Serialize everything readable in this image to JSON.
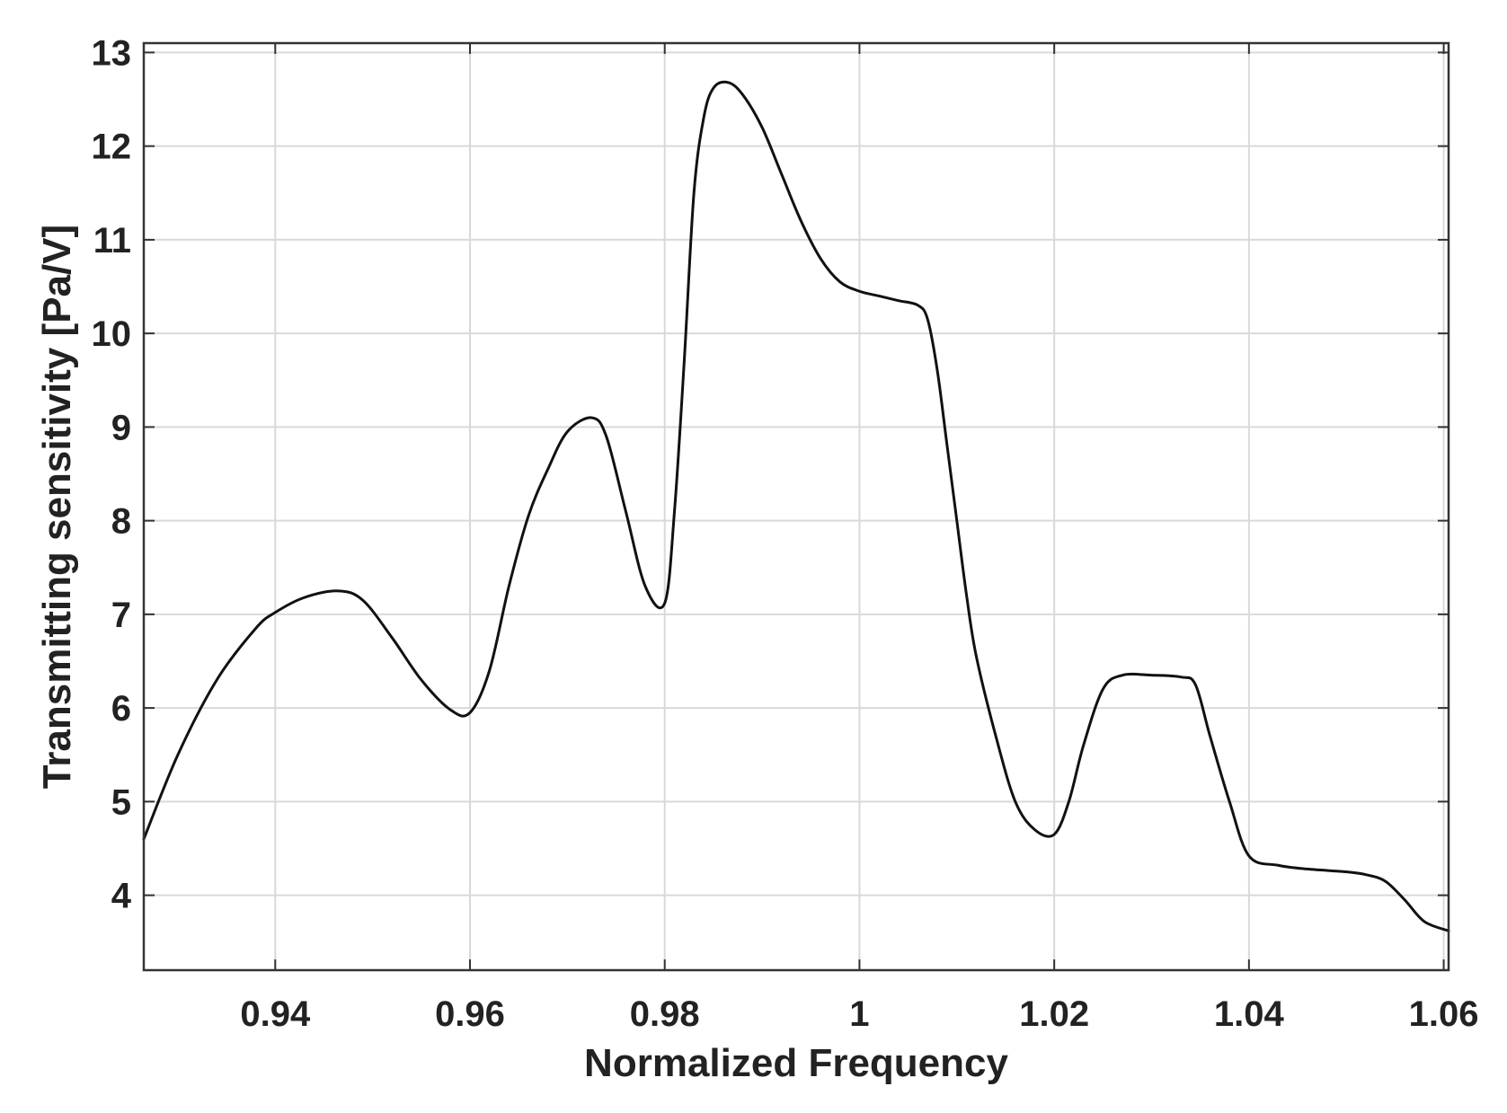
{
  "chart_data": {
    "type": "line",
    "title": "",
    "xlabel": "Normalized Frequency",
    "ylabel": "Transmitting sensitivity [Pa/V]",
    "xlim": [
      0.9265,
      1.0605
    ],
    "ylim": [
      3.2,
      13.1
    ],
    "xticks": [
      0.94,
      0.96,
      0.98,
      1.0,
      1.02,
      1.04,
      1.06
    ],
    "xtick_labels": [
      "0.94",
      "0.96",
      "0.98",
      "1",
      "1.02",
      "1.04",
      "1.06"
    ],
    "yticks": [
      4,
      5,
      6,
      7,
      8,
      9,
      10,
      11,
      12,
      13
    ],
    "ytick_labels": [
      "4",
      "5",
      "6",
      "7",
      "8",
      "9",
      "10",
      "11",
      "12",
      "13"
    ],
    "grid": true,
    "legend": "none",
    "series": [
      {
        "color": "#111111",
        "x": [
          0.9265,
          0.93,
          0.934,
          0.938,
          0.94,
          0.943,
          0.9465,
          0.949,
          0.952,
          0.955,
          0.958,
          0.96,
          0.962,
          0.964,
          0.966,
          0.968,
          0.97,
          0.9725,
          0.974,
          0.976,
          0.978,
          0.98,
          0.981,
          0.982,
          0.983,
          0.984,
          0.985,
          0.9865,
          0.988,
          0.99,
          0.992,
          0.994,
          0.996,
          0.998,
          1.0,
          1.002,
          1.004,
          1.006,
          1.007,
          1.008,
          1.009,
          1.01,
          1.011,
          1.012,
          1.014,
          1.016,
          1.018,
          1.02,
          1.0215,
          1.023,
          1.025,
          1.027,
          1.03,
          1.033,
          1.0345,
          1.036,
          1.038,
          1.04,
          1.043,
          1.046,
          1.05,
          1.052,
          1.054,
          1.056,
          1.058,
          1.0605
        ],
        "y": [
          4.6,
          5.5,
          6.3,
          6.85,
          7.02,
          7.18,
          7.25,
          7.15,
          6.75,
          6.3,
          5.98,
          5.95,
          6.4,
          7.3,
          8.05,
          8.55,
          8.95,
          9.1,
          8.9,
          8.1,
          7.3,
          7.12,
          8.1,
          9.7,
          11.5,
          12.3,
          12.62,
          12.68,
          12.55,
          12.2,
          11.7,
          11.2,
          10.8,
          10.55,
          10.45,
          10.4,
          10.35,
          10.3,
          10.15,
          9.6,
          8.8,
          8.0,
          7.2,
          6.55,
          5.7,
          5.0,
          4.7,
          4.65,
          5.0,
          5.6,
          6.2,
          6.35,
          6.35,
          6.33,
          6.25,
          5.7,
          5.0,
          4.42,
          4.32,
          4.28,
          4.25,
          4.22,
          4.15,
          3.95,
          3.72,
          3.62
        ]
      }
    ]
  }
}
